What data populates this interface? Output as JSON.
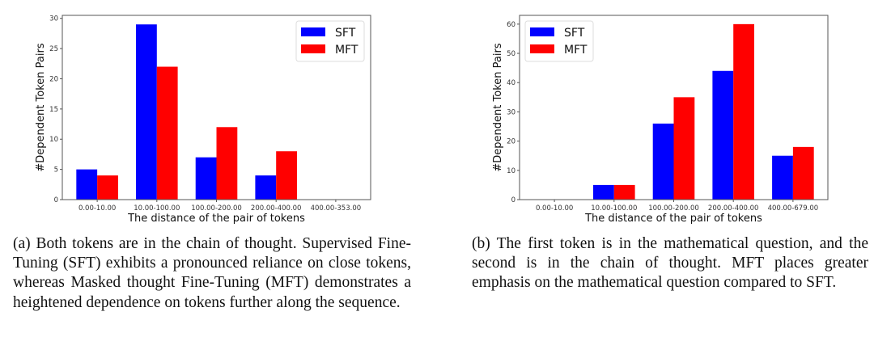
{
  "colors": {
    "SFT": "#0000ff",
    "MFT": "#ff0000"
  },
  "chart_data": [
    {
      "type": "bar",
      "categories": [
        "0.00-10.00",
        "10.00-100.00",
        "100.00-200.00",
        "200.00-400.00",
        "400.00-353.00"
      ],
      "series": [
        {
          "name": "SFT",
          "values": [
            5,
            29,
            7,
            4,
            0
          ]
        },
        {
          "name": "MFT",
          "values": [
            4,
            22,
            12,
            8,
            0
          ]
        }
      ],
      "xlabel": "The distance of the pair of tokens",
      "ylabel": "#Dependent Token Pairs",
      "ylim": [
        0,
        30.5
      ],
      "yticks": [
        0,
        5,
        10,
        15,
        20,
        25,
        30
      ],
      "legend": "top-right",
      "grid": false
    },
    {
      "type": "bar",
      "categories": [
        "0.00-10.00",
        "10.00-100.00",
        "100.00-200.00",
        "200.00-400.00",
        "400.00-679.00"
      ],
      "series": [
        {
          "name": "SFT",
          "values": [
            0,
            5,
            26,
            44,
            15
          ]
        },
        {
          "name": "MFT",
          "values": [
            0,
            5,
            35,
            60,
            18
          ]
        }
      ],
      "xlabel": "The distance of the pair of tokens",
      "ylabel": "#Dependent Token Pairs",
      "ylim": [
        0,
        63
      ],
      "yticks": [
        0,
        10,
        20,
        30,
        40,
        50,
        60
      ],
      "legend": "top-left",
      "grid": false
    }
  ],
  "captions": [
    "(a) Both tokens are in the chain of thought. Supervised Fine-Tuning (SFT) exhibits a pronounced reliance on close tokens, whereas Masked thought Fine-Tuning (MFT) demonstrates a heightened dependence on tokens further along the sequence.",
    "(b) The first token is in the mathematical question, and the second is in the chain of thought. MFT places greater emphasis on the mathematical question compared to SFT."
  ]
}
